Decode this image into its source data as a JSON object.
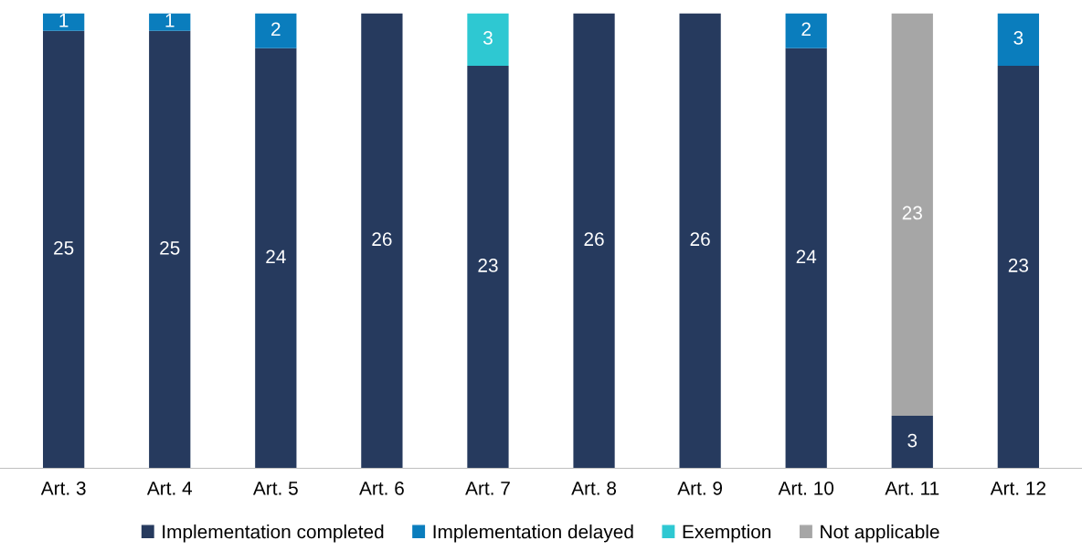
{
  "chart_data": {
    "type": "bar",
    "stacked": true,
    "data_labels": true,
    "legend": "bottom",
    "categories": [
      "Art. 3",
      "Art. 4",
      "Art. 5",
      "Art. 6",
      "Art. 7",
      "Art. 8",
      "Art. 9",
      "Art. 10",
      "Art. 11",
      "Art. 12"
    ],
    "series": [
      {
        "name": "Implementation completed",
        "color": "#263a5e",
        "values": [
          25,
          25,
          24,
          26,
          23,
          26,
          26,
          24,
          3,
          23
        ]
      },
      {
        "name": "Implementation delayed",
        "color": "#0a7dbd",
        "values": [
          1,
          1,
          2,
          null,
          null,
          null,
          null,
          2,
          null,
          3
        ]
      },
      {
        "name": "Exemption",
        "color": "#2ec8d2",
        "values": [
          null,
          null,
          null,
          null,
          3,
          null,
          null,
          null,
          null,
          null
        ]
      },
      {
        "name": "Not applicable",
        "color": "#a6a6a6",
        "values": [
          null,
          null,
          null,
          null,
          null,
          null,
          null,
          null,
          23,
          null
        ]
      }
    ]
  }
}
